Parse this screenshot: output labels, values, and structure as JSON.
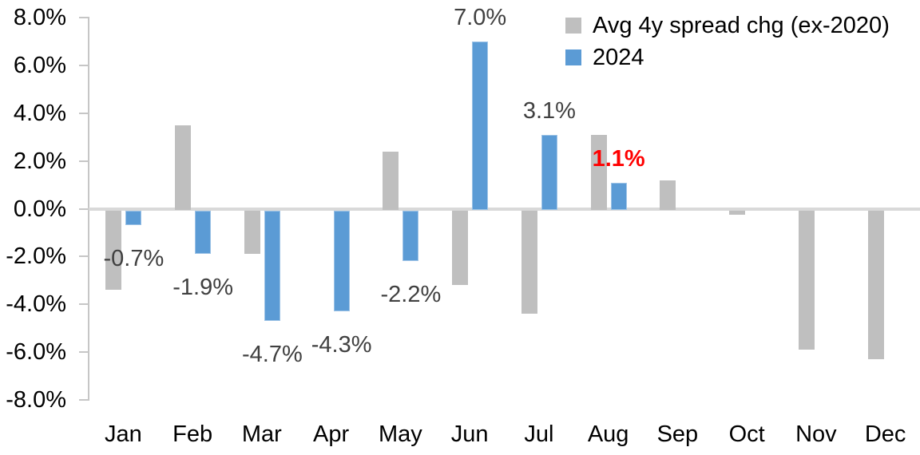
{
  "chart_data": {
    "type": "bar",
    "title": "",
    "xlabel": "",
    "ylabel": "",
    "categories": [
      "Jan",
      "Feb",
      "Mar",
      "Apr",
      "May",
      "Jun",
      "Jul",
      "Aug",
      "Sep",
      "Oct",
      "Nov",
      "Dec"
    ],
    "series": [
      {
        "name": "Avg 4y spread chg (ex-2020)",
        "color": "#BFBFBF",
        "values": [
          -3.4,
          3.5,
          -1.9,
          0.0,
          2.4,
          -3.2,
          -4.4,
          3.1,
          1.2,
          -0.25,
          -5.9,
          -6.3
        ]
      },
      {
        "name": "2024",
        "color": "#5B9BD5",
        "border_color": "#9DC3E6",
        "values": [
          -0.7,
          -1.9,
          -4.7,
          -4.3,
          -2.2,
          7.0,
          3.1,
          1.1,
          null,
          null,
          null,
          null
        ]
      }
    ],
    "data_labels": [
      {
        "index": 0,
        "text": "-0.7%",
        "color": "#404040",
        "bold": false
      },
      {
        "index": 1,
        "text": "-1.9%",
        "color": "#404040",
        "bold": false
      },
      {
        "index": 2,
        "text": "-4.7%",
        "color": "#404040",
        "bold": false
      },
      {
        "index": 3,
        "text": "-4.3%",
        "color": "#404040",
        "bold": false
      },
      {
        "index": 4,
        "text": "-2.2%",
        "color": "#404040",
        "bold": false
      },
      {
        "index": 5,
        "text": "7.0%",
        "color": "#404040",
        "bold": false
      },
      {
        "index": 6,
        "text": "3.1%",
        "color": "#404040",
        "bold": false
      },
      {
        "index": 7,
        "text": "1.1%",
        "color": "#FF0000",
        "bold": true
      }
    ],
    "y_axis": {
      "min": -8,
      "max": 8,
      "step": 2,
      "tick_labels": [
        "8.0%",
        "6.0%",
        "4.0%",
        "2.0%",
        "0.0%",
        "-2.0%",
        "-4.0%",
        "-6.0%",
        "-8.0%"
      ]
    },
    "grid": false,
    "legend_position": "top-right",
    "colors": {
      "axis_line": "#C6C6C6",
      "zero_line": "#D9D9D9",
      "axis_text": "#000000",
      "data_label": "#404040",
      "highlight": "#FF0000",
      "background": "#FFFFFF"
    }
  }
}
